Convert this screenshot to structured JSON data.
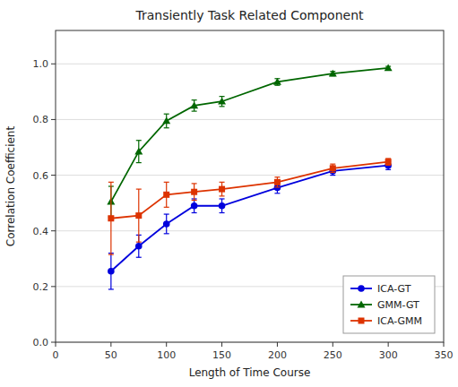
{
  "chart_data": {
    "type": "line",
    "title": "Transiently Task Related Component",
    "xlabel": "Length of Time Course",
    "ylabel": "Correlation Coefficient",
    "x": [
      50,
      75,
      100,
      125,
      150,
      200,
      250,
      300
    ],
    "series": [
      {
        "name": "ICA-GT",
        "color": "#0000dd",
        "marker": "circle",
        "values": [
          0.255,
          0.345,
          0.425,
          0.49,
          0.49,
          0.555,
          0.615,
          0.635
        ],
        "errors": [
          0.065,
          0.04,
          0.035,
          0.025,
          0.025,
          0.02,
          0.015,
          0.015
        ]
      },
      {
        "name": "GMM-GT",
        "color": "#006600",
        "marker": "triangle",
        "values": [
          0.505,
          0.685,
          0.795,
          0.85,
          0.865,
          0.935,
          0.965,
          0.985
        ],
        "errors": [
          0.055,
          0.04,
          0.025,
          0.02,
          0.018,
          0.012,
          0.008,
          0.006
        ]
      },
      {
        "name": "ICA-GMM",
        "color": "#dd3300",
        "marker": "square",
        "values": [
          0.445,
          0.455,
          0.53,
          0.54,
          0.55,
          0.575,
          0.625,
          0.648
        ],
        "errors": [
          0.13,
          0.095,
          0.045,
          0.03,
          0.025,
          0.018,
          0.015,
          0.012
        ]
      }
    ],
    "xlim": [
      0,
      350
    ],
    "ylim": [
      0.0,
      1.12
    ],
    "xticks": [
      0,
      50,
      100,
      150,
      200,
      250,
      300,
      350
    ],
    "yticks": [
      {
        "value": 0.0,
        "label": "0.0"
      },
      0.2,
      0.4,
      0.6,
      0.8,
      {
        "value": 1.0,
        "label": "1.0"
      }
    ],
    "grid": "y",
    "legend": "lower right"
  }
}
